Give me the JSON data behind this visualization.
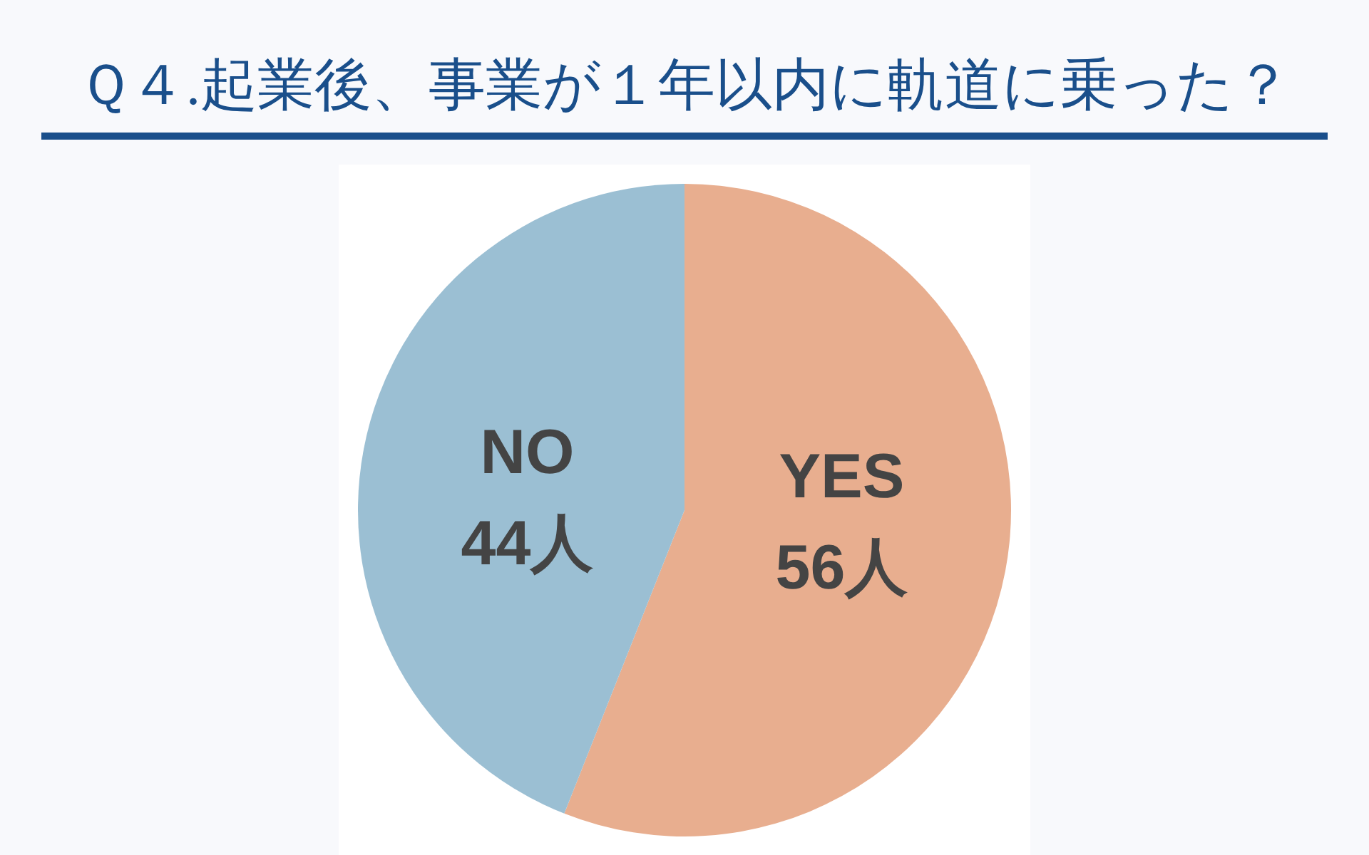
{
  "chart_data": {
    "type": "pie",
    "title": "Ｑ４.起業後、事業が１年以内に軌道に乗った？",
    "categories": [
      "YES",
      "NO"
    ],
    "values": [
      56,
      44
    ],
    "colors": [
      "#e8ae8f",
      "#9bbfd3"
    ],
    "value_labels": [
      "56人",
      "44人"
    ]
  }
}
